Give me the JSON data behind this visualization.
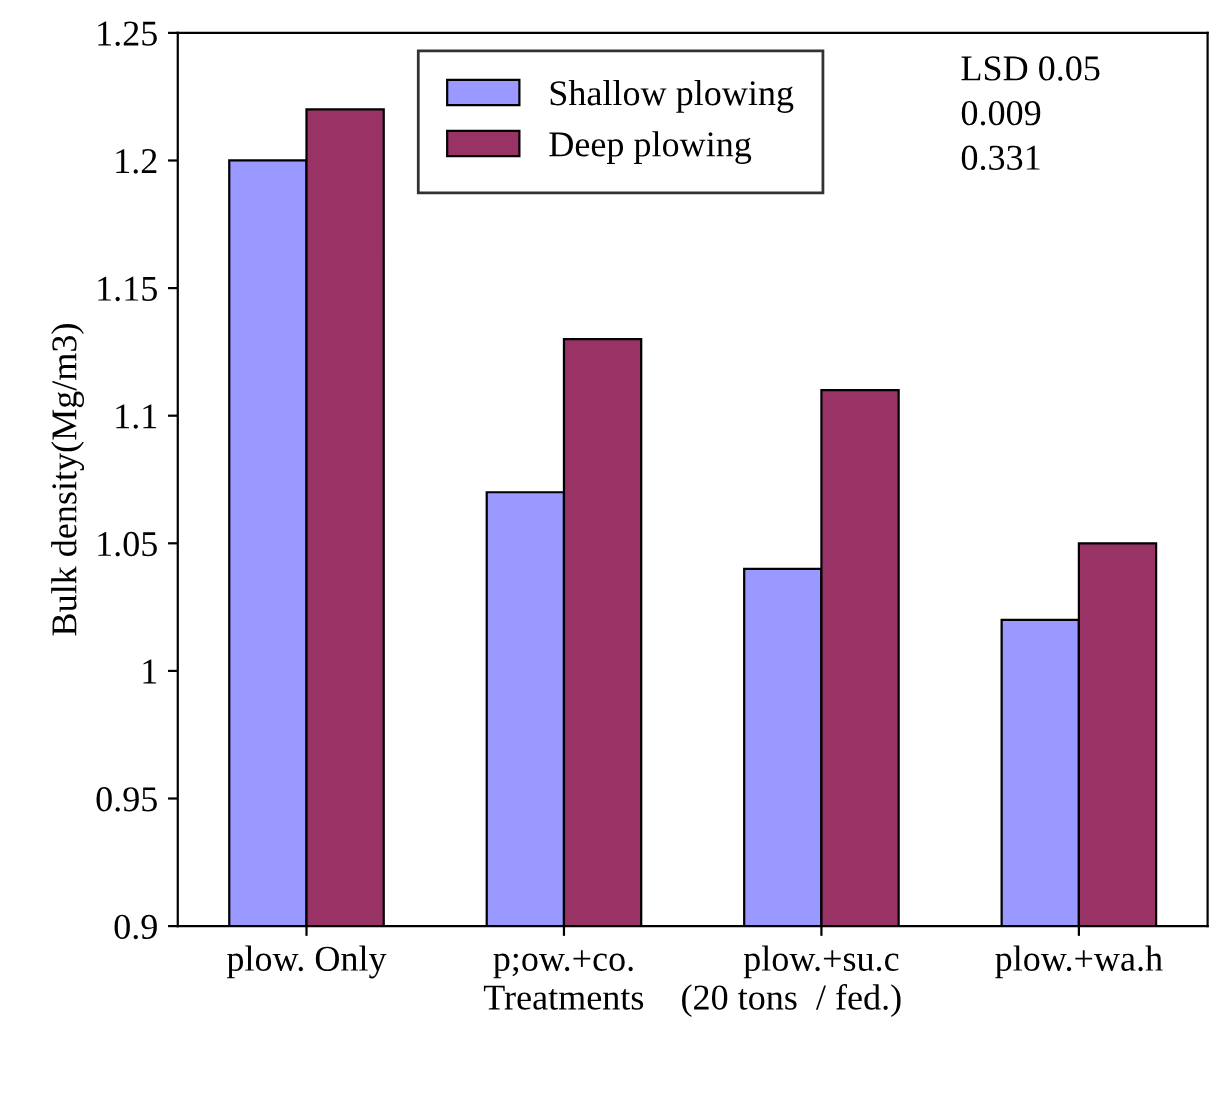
{
  "chart_data": {
    "type": "bar",
    "categories": [
      "plow. Only",
      "p;ow.+co.",
      "plow.+su.c",
      "plow.+wa.h"
    ],
    "series": [
      {
        "name": "Shallow plowing",
        "color": "#9999ff",
        "values": [
          1.2,
          1.07,
          1.04,
          1.02
        ]
      },
      {
        "name": "Deep plowing",
        "color": "#993366",
        "values": [
          1.22,
          1.13,
          1.11,
          1.05
        ]
      }
    ],
    "xlabel": "Treatments    (20 tons  / fed.)",
    "ylabel": "Bulk density(Mg/m3)",
    "ylim": [
      0.9,
      1.25
    ],
    "yticks": [
      0.9,
      0.95,
      1,
      1.05,
      1.1,
      1.15,
      1.2,
      1.25
    ],
    "annotations": [
      "LSD 0.05",
      "0.009",
      "0.331"
    ],
    "legend": "top",
    "grid": false
  }
}
